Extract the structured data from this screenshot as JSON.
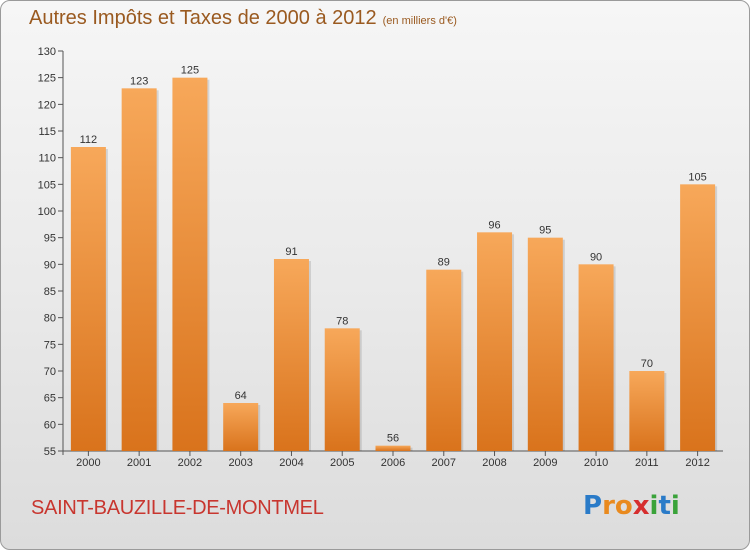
{
  "title": {
    "main": "Autres Impôts et Taxes de 2000 à 2012",
    "unit": "(en milliers d'€)"
  },
  "commune": "SAINT-BAUZILLE-DE-MONTMEL",
  "logo": {
    "letters": [
      "P",
      "r",
      "o",
      "x",
      "i",
      "t",
      "i"
    ],
    "colors": [
      "#2a7bc8",
      "#e98a1e",
      "#e98a1e",
      "#d62e2e",
      "#3aa33a",
      "#2a7bc8",
      "#3aa33a"
    ]
  },
  "colors": {
    "bar_light": "#f7a85a",
    "bar_dark": "#d9731c",
    "title": "#9a5a20",
    "commune": "#c8362f"
  },
  "chart_data": {
    "type": "bar",
    "title": "Autres Impôts et Taxes de 2000 à 2012",
    "subtitle": "(en milliers d'€)",
    "categories": [
      "2000",
      "2001",
      "2002",
      "2003",
      "2004",
      "2005",
      "2006",
      "2007",
      "2008",
      "2009",
      "2010",
      "2011",
      "2012"
    ],
    "values": [
      112,
      123,
      125,
      64,
      91,
      78,
      56,
      89,
      96,
      95,
      90,
      70,
      105
    ],
    "ylim": [
      55,
      130
    ],
    "yticks": [
      55,
      60,
      65,
      70,
      75,
      80,
      85,
      90,
      95,
      100,
      105,
      110,
      115,
      120,
      125,
      130
    ],
    "grid": false,
    "data_labels": true
  }
}
